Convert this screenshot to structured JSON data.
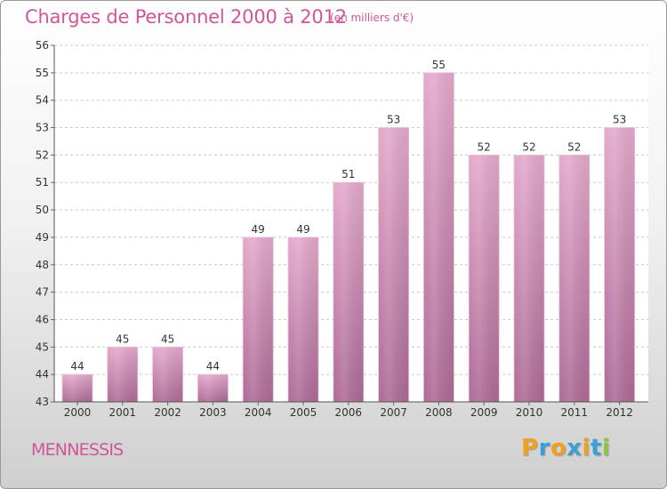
{
  "header": {
    "title": "Charges de Personnel 2000 à 2012",
    "unit": "(en milliers d'€)"
  },
  "footer": {
    "region": "MENNESSIS",
    "logo": {
      "letters": [
        "P",
        "r",
        "o",
        "x",
        "i",
        "t",
        "i"
      ],
      "colors": [
        "#f0a020",
        "#3aa0d8",
        "#f0a020",
        "#3aa0d8",
        "#f0a020",
        "#3aa0d8",
        "#8cc63f"
      ]
    }
  },
  "chart_data": {
    "type": "bar",
    "title": "Charges de Personnel 2000 à 2012",
    "subtitle": "(en milliers d'€)",
    "categories": [
      "2000",
      "2001",
      "2002",
      "2003",
      "2004",
      "2005",
      "2006",
      "2007",
      "2008",
      "2009",
      "2010",
      "2011",
      "2012"
    ],
    "values": [
      44,
      45,
      45,
      44,
      49,
      49,
      51,
      53,
      55,
      52,
      52,
      52,
      53
    ],
    "ylim": [
      43,
      56
    ],
    "yticks": [
      43,
      44,
      45,
      46,
      47,
      48,
      49,
      50,
      51,
      52,
      53,
      54,
      55,
      56
    ],
    "grid": true,
    "colors": {
      "bar_top": "#e3a6ca",
      "bar_bottom": "#b06d98",
      "text": "#d0559a"
    }
  }
}
